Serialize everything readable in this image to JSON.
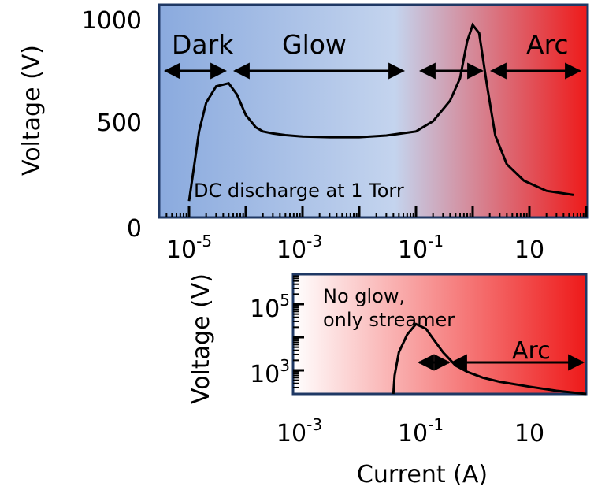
{
  "chart_data": [
    {
      "type": "line",
      "x_scale": "log",
      "ylabel": "Voltage (V)",
      "yticks": [
        "0",
        "500",
        "1000"
      ],
      "xticks": [
        {
          "base": "10",
          "exp": "-5"
        },
        {
          "base": "10",
          "exp": "-3"
        },
        {
          "base": "10",
          "exp": "-1"
        },
        {
          "base": "10",
          "exp": ""
        }
      ],
      "ylim": [
        0,
        1000
      ],
      "annotation": "DC discharge at 1 Torr",
      "regions": [
        "Dark",
        "Glow",
        "Arc"
      ],
      "colors": {
        "left": "#8aaade",
        "middle": "#c4d4ee",
        "right": "#ee1a1a"
      },
      "series": [
        {
          "x": [
            1e-05,
            1.5e-05,
            2e-05,
            3e-05,
            5e-05,
            7e-05,
            0.0001,
            0.00015,
            0.0002,
            0.0003,
            0.0005,
            0.001,
            0.003,
            0.01,
            0.03,
            0.1,
            0.2,
            0.4,
            0.6,
            0.8,
            1.0,
            1.3,
            1.8,
            2.5,
            4,
            8,
            20,
            60
          ],
          "y": [
            80,
            420,
            560,
            640,
            655,
            600,
            500,
            440,
            420,
            410,
            402,
            395,
            392,
            392,
            400,
            420,
            470,
            570,
            680,
            860,
            940,
            900,
            640,
            400,
            260,
            180,
            130,
            110
          ]
        }
      ]
    },
    {
      "type": "line",
      "x_scale": "log",
      "y_scale": "log",
      "xlabel": "Current (A)",
      "ylabel": "Voltage (V)",
      "yticks": [
        {
          "base": "10",
          "exp": "3"
        },
        {
          "base": "10",
          "exp": "5"
        }
      ],
      "xticks": [
        {
          "base": "10",
          "exp": "-3"
        },
        {
          "base": "10",
          "exp": "-1"
        },
        {
          "base": "10",
          "exp": ""
        }
      ],
      "annotation": [
        "No glow,",
        "only streamer"
      ],
      "regions": [
        "Arc"
      ],
      "colors": {
        "left": "#ffffff",
        "right": "#ee1a1a"
      },
      "series": [
        {
          "x": [
            0.04,
            0.042,
            0.05,
            0.07,
            0.1,
            0.15,
            0.2,
            0.3,
            0.5,
            0.8,
            1.5,
            3,
            10,
            30,
            100
          ],
          "y": [
            150,
            700,
            3500,
            12000,
            25000,
            18000,
            9000,
            3500,
            1400,
            900,
            600,
            450,
            320,
            240,
            180
          ]
        }
      ]
    }
  ]
}
